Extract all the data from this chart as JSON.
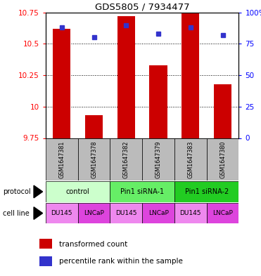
{
  "title": "GDS5805 / 7934477",
  "samples": [
    "GSM1647381",
    "GSM1647378",
    "GSM1647382",
    "GSM1647379",
    "GSM1647383",
    "GSM1647380"
  ],
  "bar_values": [
    10.62,
    9.93,
    10.72,
    10.33,
    10.75,
    10.18
  ],
  "percentile_values": [
    88,
    80,
    90,
    83,
    88,
    82
  ],
  "ylim_left": [
    9.75,
    10.75
  ],
  "ylim_right": [
    0,
    100
  ],
  "yticks_left": [
    9.75,
    10.0,
    10.25,
    10.5,
    10.75
  ],
  "yticks_right": [
    0,
    25,
    50,
    75,
    100
  ],
  "ytick_labels_left": [
    "9.75",
    "10",
    "10.25",
    "10.5",
    "10.75"
  ],
  "ytick_labels_right": [
    "0",
    "25",
    "50",
    "75",
    "100%"
  ],
  "bar_color": "#cc0000",
  "dot_color": "#3333cc",
  "bar_bottom": 9.75,
  "protocol_groups": [
    {
      "label": "control",
      "start": 0,
      "end": 2,
      "color": "#ccffcc"
    },
    {
      "label": "Pin1 siRNA-1",
      "start": 2,
      "end": 4,
      "color": "#66ee66"
    },
    {
      "label": "Pin1 siRNA-2",
      "start": 4,
      "end": 6,
      "color": "#22cc22"
    }
  ],
  "cell_lines": [
    "DU145",
    "LNCaP",
    "DU145",
    "LNCaP",
    "DU145",
    "LNCaP"
  ],
  "cell_line_colors": [
    "#ee88ee",
    "#dd44dd",
    "#ee88ee",
    "#dd44dd",
    "#ee88ee",
    "#dd44dd"
  ],
  "protocol_label": "protocol",
  "cell_line_label": "cell line",
  "legend_bar": "transformed count",
  "legend_dot": "percentile rank within the sample",
  "sample_box_color": "#bbbbbb",
  "bar_width": 0.55,
  "dot_size": 5
}
